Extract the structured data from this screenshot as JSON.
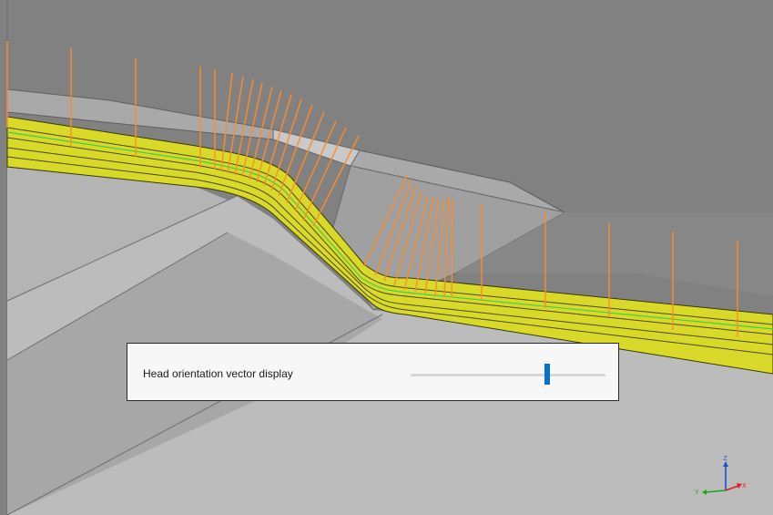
{
  "window": {
    "background_color": "#818181",
    "part_color": "#b9b9b9",
    "ply_color": "#d9d92a",
    "vector_color": "#ff8c28"
  },
  "panel": {
    "label": "Head orientation vector display",
    "slider_value_fraction": 0.7
  },
  "axes": {
    "z": "Z",
    "y": "Y",
    "x": "X",
    "colors": {
      "z": "#1e4fd6",
      "y": "#1aa51a",
      "x": "#e02020"
    }
  }
}
